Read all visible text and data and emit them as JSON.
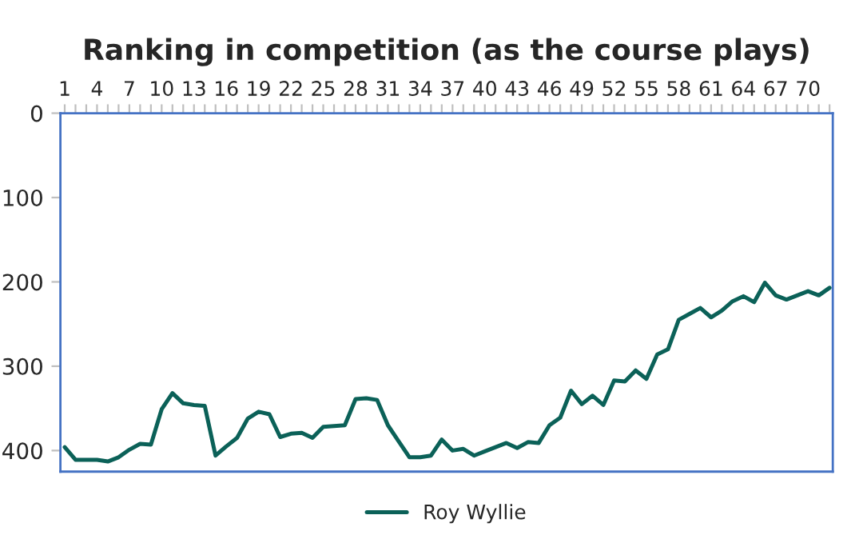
{
  "chart_data": {
    "type": "line",
    "title": "Ranking in competition (as the course plays)",
    "categories": [
      "1",
      null,
      null,
      "4",
      null,
      null,
      "7",
      null,
      null,
      "10",
      null,
      null,
      "13",
      null,
      null,
      "16",
      null,
      null,
      "19",
      null,
      null,
      "22",
      null,
      null,
      "25",
      null,
      null,
      "28",
      null,
      null,
      "31",
      null,
      null,
      "34",
      null,
      null,
      "37",
      null,
      null,
      "40",
      null,
      null,
      "43",
      null,
      null,
      "46",
      null,
      null,
      "49",
      null,
      null,
      "52",
      null,
      null,
      "55",
      null,
      null,
      "58",
      null,
      null,
      "61",
      null,
      null,
      "64",
      null,
      null,
      "67",
      null,
      null,
      "70",
      null,
      null
    ],
    "series": [
      {
        "name": "Roy Wyllie",
        "color": "#0b6158",
        "values": [
          396,
          411,
          411,
          411,
          413,
          408,
          399,
          392,
          393,
          351,
          332,
          344,
          346,
          347,
          406,
          395,
          385,
          362,
          354,
          357,
          384,
          380,
          379,
          385,
          372,
          371,
          370,
          339,
          338,
          340,
          370,
          389,
          408,
          408,
          406,
          387,
          400,
          398,
          406,
          401,
          396,
          391,
          397,
          390,
          391,
          370,
          361,
          329,
          345,
          335,
          346,
          317,
          318,
          305,
          315,
          286,
          280,
          245,
          238,
          231,
          242,
          234,
          223,
          217,
          224,
          201,
          216,
          221,
          216,
          211,
          216,
          207
        ]
      }
    ],
    "ylim": [
      425,
      0
    ],
    "yticks": [
      0,
      100,
      200,
      300,
      400
    ],
    "grid": false,
    "legend": "bottom",
    "line_style": "solid",
    "marker": "none"
  }
}
